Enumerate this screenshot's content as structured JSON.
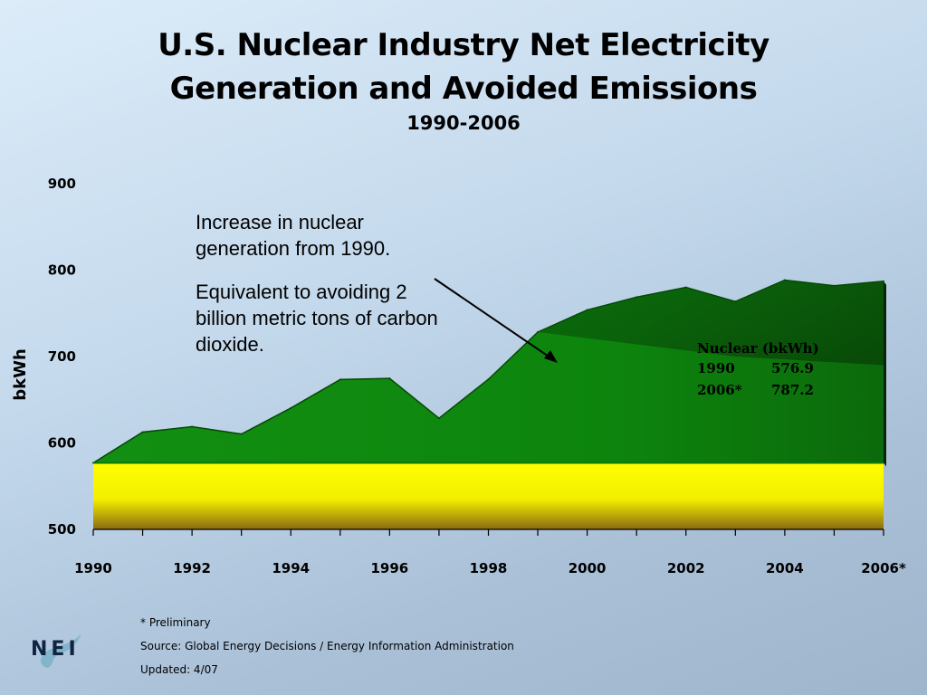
{
  "title_line1": "U.S. Nuclear Industry Net Electricity",
  "title_line2": "Generation and Avoided Emissions",
  "title_years": "1990-2006",
  "annotation": {
    "line1": "Increase in nuclear generation from 1990.",
    "line2": "Equivalent to avoiding 2 billion metric tons of carbon dioxide."
  },
  "inset": {
    "header": "Nuclear (bkWh)",
    "rows": [
      {
        "year": "1990",
        "value": "576.9"
      },
      {
        "year": "2006*",
        "value": "787.2"
      }
    ]
  },
  "footnotes": {
    "preliminary": "* Preliminary",
    "source": "Source: Global Energy Decisions / Energy Information Administration",
    "updated": "Updated: 4/07"
  },
  "logo_text": "NEI",
  "colors": {
    "green": "#0c8a0c",
    "dark_green": "#0a4a0a",
    "yellow": "#ffff00",
    "baseline_brown": "#7a5a10"
  },
  "chart_data": {
    "type": "area",
    "ylabel": "bkWh",
    "xlabel": "",
    "ylim": [
      500,
      900
    ],
    "yticks": [
      500,
      600,
      700,
      800,
      900
    ],
    "x": [
      "1990",
      "1991",
      "1992",
      "1993",
      "1994",
      "1995",
      "1996",
      "1997",
      "1998",
      "1999",
      "2000",
      "2001",
      "2002",
      "2003",
      "2004",
      "2005",
      "2006*"
    ],
    "x_tick_labels": [
      "1990",
      "1992",
      "1994",
      "1996",
      "1998",
      "2000",
      "2002",
      "2004",
      "2006*"
    ],
    "values": [
      576.9,
      612.6,
      618.8,
      610.3,
      640.4,
      673.4,
      674.7,
      628.6,
      673.7,
      728.3,
      753.9,
      768.8,
      780.1,
      763.7,
      788.5,
      782.0,
      787.2
    ],
    "baseline": 576.9,
    "grid": false,
    "legend": "none"
  }
}
